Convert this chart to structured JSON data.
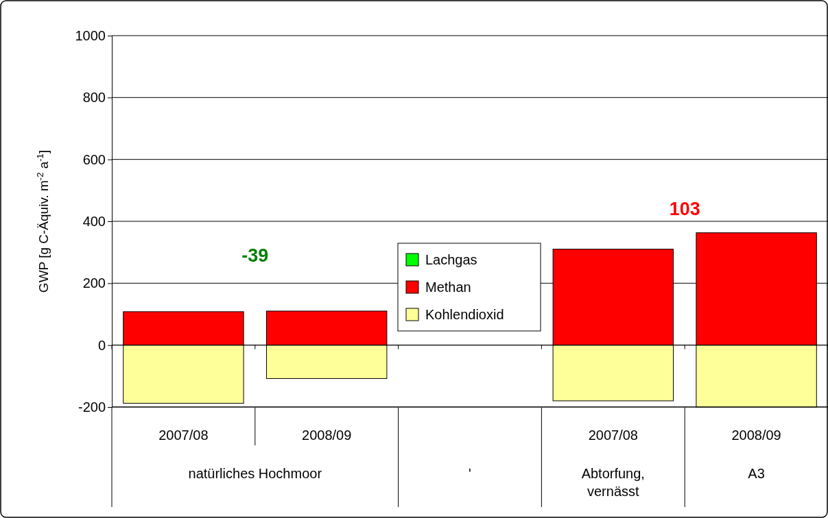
{
  "chart_data": {
    "type": "bar",
    "stacked": true,
    "ylabel": "GWP [g C-Äquiv. m$^{-2}$ a$^{-1}$]",
    "categories": [
      "2007/08",
      "2008/09",
      null,
      "2007/08",
      "2008/09"
    ],
    "series": [
      {
        "name": "Kohlendioxid",
        "color": "#ffff99",
        "values": [
          -188,
          -108,
          null,
          -180,
          -200
        ]
      },
      {
        "name": "Methan",
        "color": "#ff0000",
        "values": [
          108,
          110,
          null,
          310,
          363
        ]
      },
      {
        "name": "Lachgas",
        "color": "#00ff00",
        "values": [
          0,
          0,
          null,
          0,
          0
        ]
      }
    ],
    "ylim": [
      -200,
      1000
    ],
    "yticks": [
      -200,
      0,
      200,
      400,
      600,
      800,
      1000
    ],
    "grid": "y",
    "legend": "center",
    "annotations": [
      "-39",
      "103",
      "natürliches Hochmoor",
      "'",
      "Abtorfung, vernässt",
      "A3"
    ]
  }
}
